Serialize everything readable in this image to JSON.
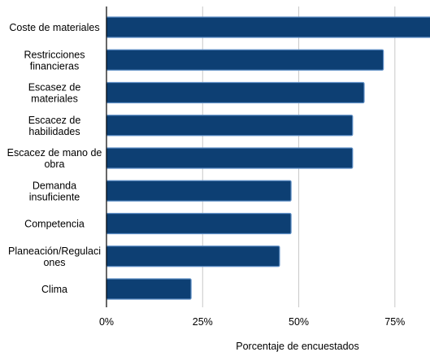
{
  "chart_data": {
    "type": "bar",
    "orientation": "horizontal",
    "categories": [
      [
        "Coste de materiales"
      ],
      [
        "Restricciones",
        "financieras"
      ],
      [
        "Escasez de",
        "materiales"
      ],
      [
        "Escacez de",
        "habilidades"
      ],
      [
        "Escacez de mano de",
        "obra"
      ],
      [
        "Demanda",
        "insuficiente"
      ],
      [
        "Competencia"
      ],
      [
        "Planeación/Regulaci",
        "ones"
      ],
      [
        "Clima"
      ]
    ],
    "values": [
      85,
      72,
      67,
      64,
      64,
      48,
      48,
      45,
      22
    ],
    "xlim": [
      0,
      84
    ],
    "xticks": [
      0,
      25,
      50,
      75
    ],
    "tick_labels": [
      "0%",
      "25%",
      "50%",
      "75%"
    ],
    "xlabel": "Porcentaje de encuestados",
    "ylabel": "",
    "grid": "vertical",
    "colors": {
      "bar": "#0d3f73",
      "bar_edge": "#5b8cc4",
      "grid": "#c8c8c8",
      "axis": "#000000"
    }
  }
}
